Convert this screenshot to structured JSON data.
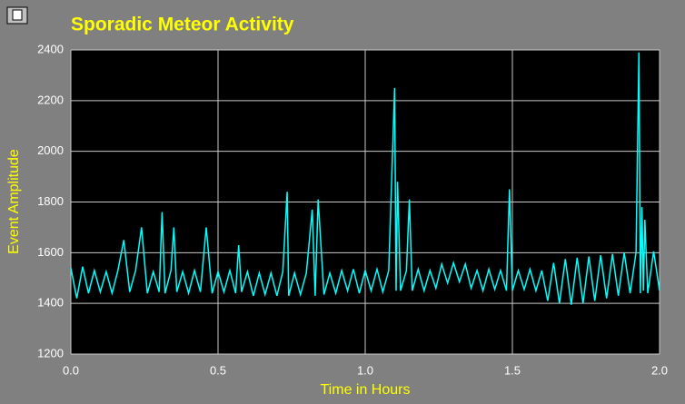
{
  "chart_data": {
    "type": "line",
    "title": "Sporadic Meteor Activity",
    "xlabel": "Time in Hours",
    "ylabel": "Event Amplitude",
    "xlim": [
      0,
      2.0
    ],
    "ylim": [
      1200,
      2400
    ],
    "xticks": [
      {
        "value": 0,
        "label": "0.0"
      },
      {
        "value": 0.5,
        "label": "0.5"
      },
      {
        "value": 1.0,
        "label": "1.0"
      },
      {
        "value": 1.5,
        "label": "1.5"
      },
      {
        "value": 2.0,
        "label": "2.0"
      }
    ],
    "yticks": [
      1200,
      1400,
      1600,
      1800,
      2000,
      2200,
      2400
    ],
    "grid": true,
    "series": [
      {
        "color": "#00ffff",
        "x": [
          0,
          0.02,
          0.04,
          0.06,
          0.08,
          0.1,
          0.12,
          0.14,
          0.16,
          0.18,
          0.2,
          0.22,
          0.24,
          0.26,
          0.28,
          0.3,
          0.31,
          0.32,
          0.34,
          0.35,
          0.36,
          0.38,
          0.4,
          0.42,
          0.44,
          0.46,
          0.48,
          0.5,
          0.52,
          0.54,
          0.56,
          0.57,
          0.58,
          0.6,
          0.62,
          0.64,
          0.66,
          0.68,
          0.7,
          0.72,
          0.735,
          0.74,
          0.76,
          0.78,
          0.8,
          0.82,
          0.83,
          0.84,
          0.86,
          0.88,
          0.9,
          0.92,
          0.94,
          0.96,
          0.98,
          1.0,
          1.02,
          1.04,
          1.06,
          1.08,
          1.1,
          1.105,
          1.11,
          1.12,
          1.14,
          1.15,
          1.16,
          1.18,
          1.2,
          1.22,
          1.24,
          1.26,
          1.28,
          1.3,
          1.32,
          1.34,
          1.36,
          1.38,
          1.4,
          1.42,
          1.44,
          1.46,
          1.48,
          1.49,
          1.5,
          1.52,
          1.54,
          1.56,
          1.58,
          1.6,
          1.62,
          1.64,
          1.66,
          1.68,
          1.7,
          1.72,
          1.74,
          1.76,
          1.78,
          1.8,
          1.82,
          1.84,
          1.86,
          1.88,
          1.9,
          1.92,
          1.93,
          1.935,
          1.94,
          1.945,
          1.95,
          1.96,
          1.98,
          2.0
        ],
        "values": [
          1540,
          1420,
          1545,
          1440,
          1530,
          1445,
          1525,
          1440,
          1530,
          1650,
          1445,
          1530,
          1700,
          1440,
          1525,
          1445,
          1760,
          1440,
          1530,
          1700,
          1445,
          1525,
          1440,
          1530,
          1445,
          1700,
          1440,
          1525,
          1445,
          1530,
          1440,
          1630,
          1445,
          1525,
          1430,
          1520,
          1435,
          1520,
          1430,
          1525,
          1840,
          1430,
          1520,
          1435,
          1520,
          1770,
          1430,
          1810,
          1435,
          1520,
          1440,
          1530,
          1450,
          1535,
          1440,
          1530,
          1450,
          1535,
          1445,
          1530,
          2250,
          1450,
          1880,
          1450,
          1530,
          1810,
          1450,
          1535,
          1450,
          1530,
          1460,
          1555,
          1480,
          1560,
          1485,
          1555,
          1460,
          1530,
          1450,
          1535,
          1455,
          1530,
          1450,
          1850,
          1450,
          1530,
          1455,
          1535,
          1450,
          1530,
          1410,
          1560,
          1400,
          1575,
          1395,
          1580,
          1400,
          1585,
          1410,
          1590,
          1420,
          1595,
          1430,
          1600,
          1440,
          1600,
          2390,
          1440,
          1780,
          1450,
          1730,
          1440,
          1605,
          1450
        ]
      }
    ]
  }
}
